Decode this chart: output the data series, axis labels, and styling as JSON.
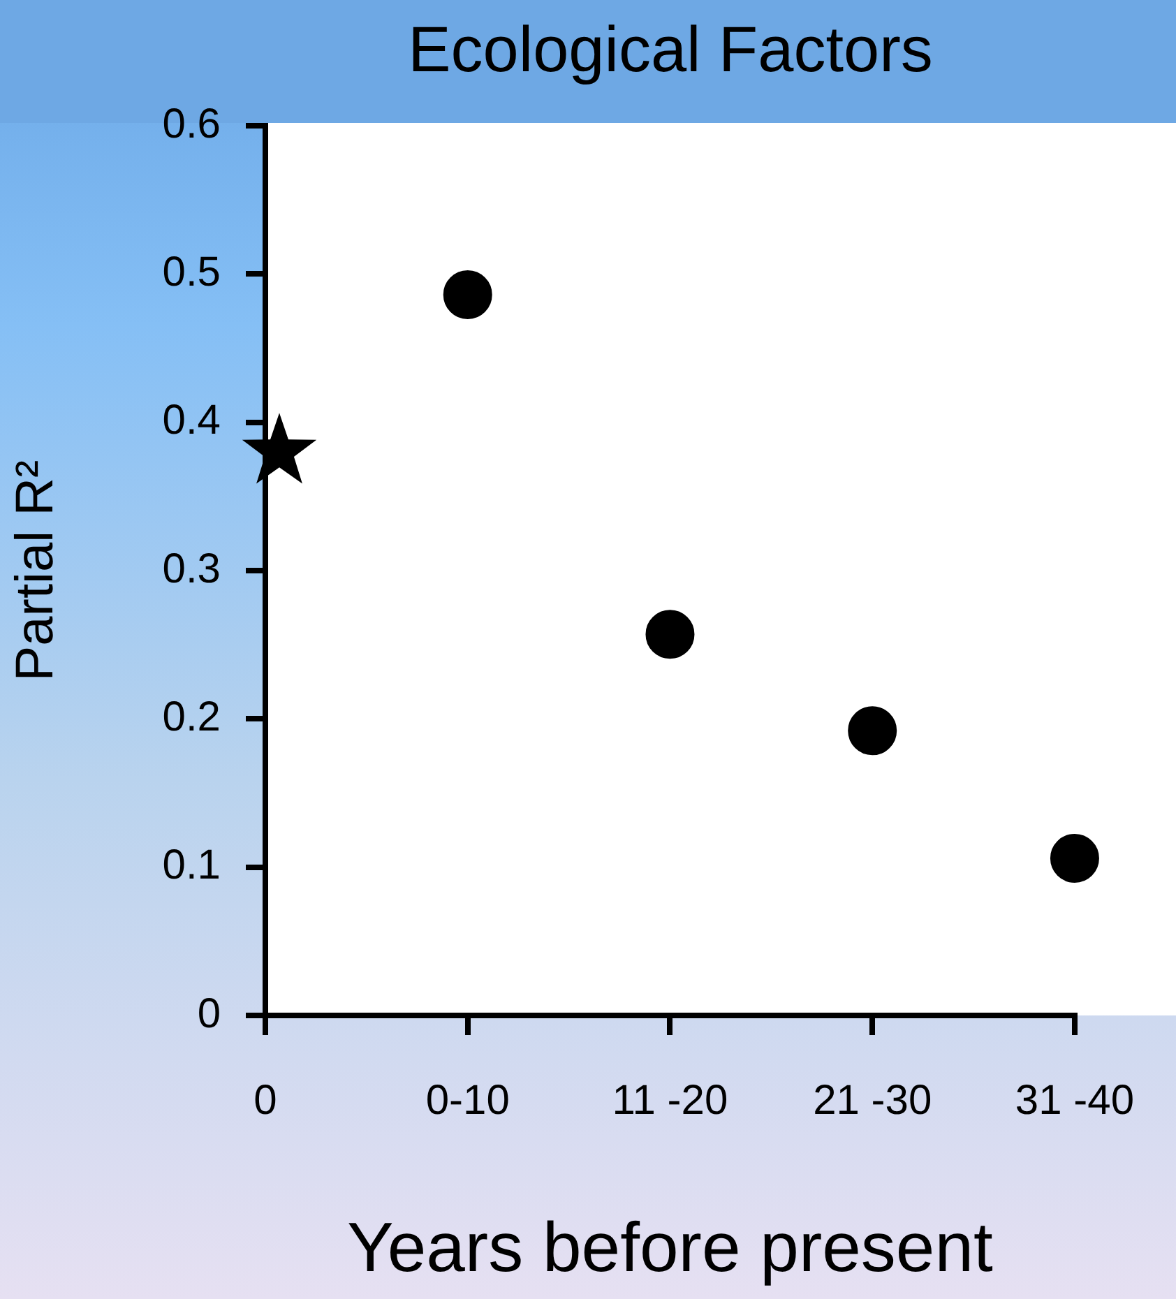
{
  "chart_data": {
    "type": "scatter",
    "title": "Ecological Factors",
    "xlabel": "Years before present",
    "ylabel": "Partial R²",
    "categories": [
      "0",
      "0-10",
      "11 -20",
      "21 -30",
      "31 -40"
    ],
    "series": [
      {
        "color": "#000000",
        "marker": "star",
        "values": [
          0.38,
          null,
          null,
          null,
          null
        ]
      },
      {
        "color": "#000000",
        "marker": "circle",
        "values": [
          null,
          0.486,
          0.257,
          0.192,
          0.106
        ]
      }
    ],
    "ylim": [
      0,
      0.6
    ],
    "yticks": [
      0,
      0.1,
      0.2,
      0.3,
      0.4,
      0.5,
      0.6
    ],
    "grid": false,
    "legend": false
  }
}
